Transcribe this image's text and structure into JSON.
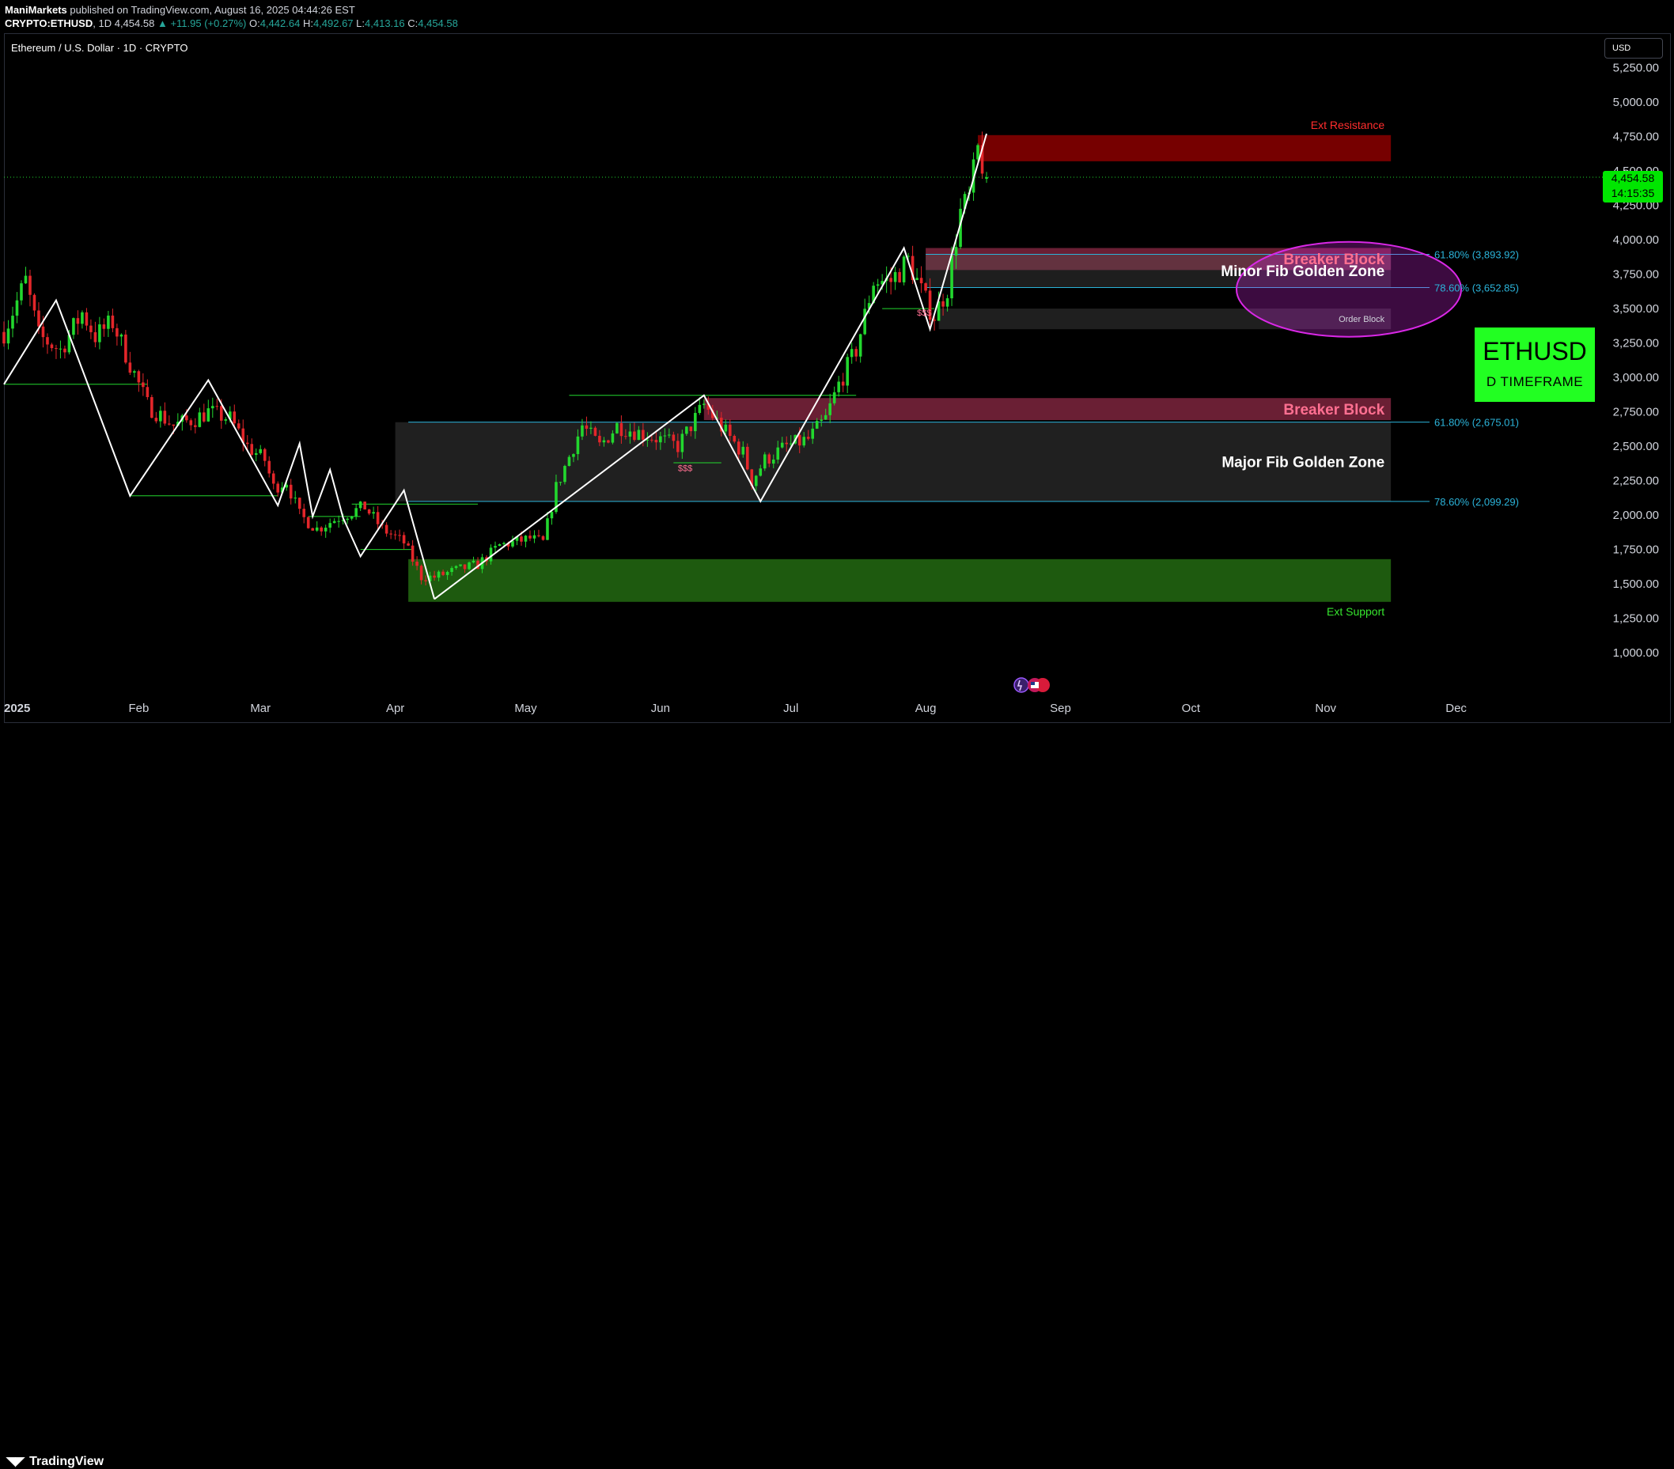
{
  "header": {
    "publisher": "ManiMarkets",
    "published_text": "published on TradingView.com, August 16, 2025 04:44:26 EST",
    "symbol": "CRYPTO:ETHUSD",
    "interval": "1D",
    "last": "4,454.58",
    "change": "+11.95 (+0.27%)",
    "open_label": "O:",
    "open": "4,442.64",
    "high_label": "H:",
    "high": "4,492.67",
    "low_label": "L:",
    "low": "4,413.16",
    "close_label": "C:",
    "close": "4,454.58"
  },
  "symbol_title": "Ethereum / U.S. Dollar · 1D · CRYPTO",
  "currency_button": "USD",
  "price_tag": {
    "price": "4,454.58",
    "countdown": "14:15:35"
  },
  "badge": {
    "title": "ETHUSD",
    "subtitle": "D TIMEFRAME"
  },
  "footer": {
    "logo_text": "TradingView"
  },
  "colors": {
    "bull": "#22d72e",
    "bear": "#e3262a",
    "resistance": "#8b0000",
    "breaker": "#8e2a45",
    "support": "#1e5a0f",
    "fib": "#2bb3d9",
    "badge": "#22ff22",
    "ellipse": "#d928e6"
  },
  "chart_data": {
    "type": "candlestick",
    "title": "Ethereum / U.S. Dollar · 1D · CRYPTO",
    "y_axis": {
      "ticks": [
        "5,250.00",
        "5,000.00",
        "4,750.00",
        "4,500.00",
        "4,250.00",
        "4,000.00",
        "3,750.00",
        "3,500.00",
        "3,250.00",
        "3,000.00",
        "2,750.00",
        "2,500.00",
        "2,250.00",
        "2,000.00",
        "1,750.00",
        "1,500.00",
        "1,250.00",
        "1,000.00"
      ],
      "tick_values": [
        5250,
        5000,
        4750,
        4500,
        4250,
        4000,
        3750,
        3500,
        3250,
        3000,
        2750,
        2500,
        2250,
        2000,
        1750,
        1500,
        1250,
        1000
      ],
      "range": [
        800,
        5500
      ],
      "currency": "USD"
    },
    "x_axis": {
      "ticks": [
        "2025",
        "Feb",
        "Mar",
        "Apr",
        "May",
        "Jun",
        "Jul",
        "Aug",
        "Sep",
        "Oct",
        "Nov",
        "Dec"
      ],
      "tick_dates": [
        "2025-01-01",
        "2025-02-01",
        "2025-03-01",
        "2025-04-01",
        "2025-05-01",
        "2025-06-01",
        "2025-07-01",
        "2025-08-01",
        "2025-09-01",
        "2025-10-01",
        "2025-11-01",
        "2025-12-01"
      ],
      "range": [
        "2025-01-01",
        "2025-12-20"
      ]
    },
    "last_price": 4454.58,
    "candle_anchors": [
      [
        "2025-01-01",
        3330
      ],
      [
        "2025-01-06",
        3700
      ],
      [
        "2025-01-09",
        3300
      ],
      [
        "2025-01-14",
        3200
      ],
      [
        "2025-01-19",
        3470
      ],
      [
        "2025-01-22",
        3300
      ],
      [
        "2025-01-26",
        3400
      ],
      [
        "2025-01-30",
        3100
      ],
      [
        "2025-02-03",
        2800
      ],
      [
        "2025-02-09",
        2650
      ],
      [
        "2025-02-14",
        2700
      ],
      [
        "2025-02-17",
        2750
      ],
      [
        "2025-02-22",
        2700
      ],
      [
        "2025-02-26",
        2500
      ],
      [
        "2025-03-02",
        2400
      ],
      [
        "2025-03-04",
        2200
      ],
      [
        "2025-03-07",
        2250
      ],
      [
        "2025-03-10",
        2000
      ],
      [
        "2025-03-14",
        1900
      ],
      [
        "2025-03-20",
        2000
      ],
      [
        "2025-03-25",
        2060
      ],
      [
        "2025-03-29",
        1900
      ],
      [
        "2025-04-03",
        1800
      ],
      [
        "2025-04-07",
        1550
      ],
      [
        "2025-04-10",
        1550
      ],
      [
        "2025-04-15",
        1600
      ],
      [
        "2025-04-20",
        1640
      ],
      [
        "2025-04-25",
        1780
      ],
      [
        "2025-05-02",
        1830
      ],
      [
        "2025-05-05",
        1800
      ],
      [
        "2025-05-08",
        2200
      ],
      [
        "2025-05-12",
        2500
      ],
      [
        "2025-05-14",
        2650
      ],
      [
        "2025-05-18",
        2500
      ],
      [
        "2025-05-22",
        2650
      ],
      [
        "2025-05-27",
        2600
      ],
      [
        "2025-06-01",
        2550
      ],
      [
        "2025-06-05",
        2500
      ],
      [
        "2025-06-09",
        2700
      ],
      [
        "2025-06-11",
        2800
      ],
      [
        "2025-06-16",
        2600
      ],
      [
        "2025-06-20",
        2450
      ],
      [
        "2025-06-22",
        2250
      ],
      [
        "2025-06-25",
        2400
      ],
      [
        "2025-06-30",
        2500
      ],
      [
        "2025-07-05",
        2550
      ],
      [
        "2025-07-09",
        2700
      ],
      [
        "2025-07-12",
        2950
      ],
      [
        "2025-07-16",
        3200
      ],
      [
        "2025-07-20",
        3700
      ],
      [
        "2025-07-24",
        3700
      ],
      [
        "2025-07-28",
        3850
      ],
      [
        "2025-08-01",
        3550
      ],
      [
        "2025-08-03",
        3450
      ],
      [
        "2025-08-06",
        3650
      ],
      [
        "2025-08-09",
        4200
      ],
      [
        "2025-08-11",
        4300
      ],
      [
        "2025-08-13",
        4650
      ],
      [
        "2025-08-15",
        4454.58
      ]
    ],
    "swing_lines": [
      [
        [
          "2025-01-01",
          2950
        ],
        [
          "2025-01-13",
          3560
        ],
        [
          "2025-01-30",
          2140
        ],
        [
          "2025-02-17",
          2980
        ],
        [
          "2025-03-05",
          2070
        ],
        [
          "2025-03-10",
          2520
        ],
        [
          "2025-03-13",
          1990
        ],
        [
          "2025-03-17",
          2330
        ],
        [
          "2025-03-20",
          1980
        ],
        [
          "2025-03-24",
          1700
        ],
        [
          "2025-04-03",
          2180
        ],
        [
          "2025-04-10",
          1390
        ]
      ],
      [
        [
          "2025-04-10",
          1390
        ],
        [
          "2025-06-11",
          2870
        ],
        [
          "2025-06-24",
          2100
        ],
        [
          "2025-07-27",
          3940
        ],
        [
          "2025-08-02",
          3350
        ],
        [
          "2025-08-15",
          4770
        ]
      ]
    ],
    "zones": [
      {
        "label": "Ext Resistance",
        "from": 4570,
        "to": 4760,
        "start": "2025-08-13",
        "end": "2025-11-16"
      },
      {
        "label": "Breaker Block",
        "from": 3780,
        "to": 3940,
        "start": "2025-08-01",
        "end": "2025-11-16"
      },
      {
        "label": "Minor Fib Golden Zone",
        "from": 3652.85,
        "to": 3893.92,
        "start": "2025-08-01",
        "end": "2025-11-16"
      },
      {
        "label": "Order Block",
        "from": 3350,
        "to": 3500,
        "start": "2025-08-04",
        "end": "2025-11-16"
      },
      {
        "label": "Breaker Block",
        "from": 2690,
        "to": 2850,
        "start": "2025-06-11",
        "end": "2025-11-16"
      },
      {
        "label": "Major Fib Golden Zone",
        "from": 2099.29,
        "to": 2675.01,
        "start": "2025-04-01",
        "end": "2025-11-16"
      },
      {
        "label": "Ext Support",
        "from": 1370,
        "to": 1680,
        "start": "2025-04-04",
        "end": "2025-11-16"
      }
    ],
    "fib_levels": [
      {
        "label": "61.80% (3,893.92)",
        "value": 3893.92
      },
      {
        "label": "78.60% (3,652.85)",
        "value": 3652.85
      },
      {
        "label": "61.80% (2,675.01)",
        "value": 2675.01
      },
      {
        "label": "78.60% (2,099.29)",
        "value": 2099.29
      }
    ],
    "annotations": [
      {
        "text": "$$$",
        "date": "2025-06-05",
        "value": 2320
      },
      {
        "text": "$$$",
        "date": "2025-07-30",
        "value": 3450
      }
    ],
    "grid": false,
    "legend": "none"
  }
}
